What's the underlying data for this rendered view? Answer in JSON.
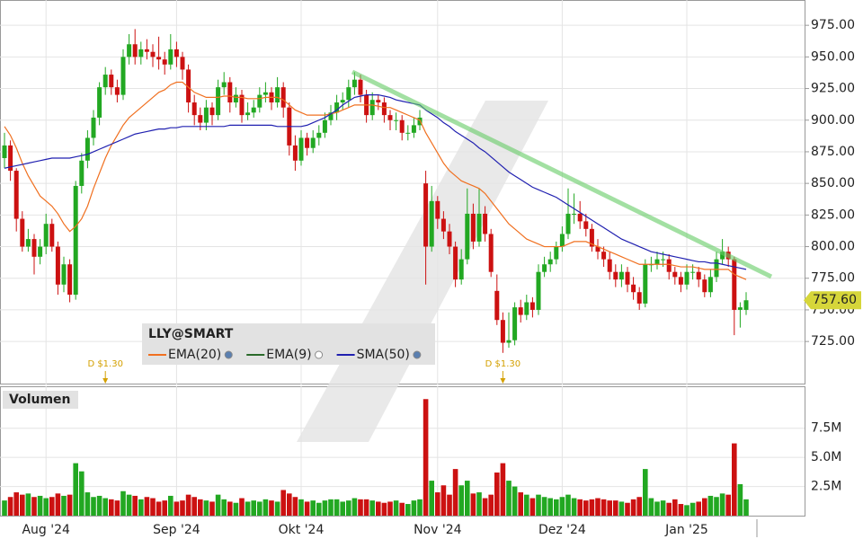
{
  "chart_data": {
    "type": "candlestick",
    "symbol": "LLY@SMART",
    "volume_title": "Volumen",
    "colors": {
      "up": "#22a822",
      "down": "#cc1111"
    },
    "categories": [
      null,
      null,
      null,
      null,
      null,
      null,
      null,
      "Aug '24",
      null,
      null,
      null,
      null,
      null,
      null,
      null,
      null,
      null,
      null,
      null,
      null,
      null,
      null,
      null,
      null,
      null,
      null,
      null,
      null,
      null,
      "Sep '24",
      null,
      null,
      null,
      null,
      null,
      null,
      null,
      null,
      null,
      null,
      null,
      null,
      null,
      null,
      null,
      null,
      null,
      null,
      null,
      null,
      "Okt '24",
      null,
      null,
      null,
      null,
      null,
      null,
      null,
      null,
      null,
      null,
      null,
      null,
      null,
      null,
      null,
      null,
      null,
      null,
      null,
      null,
      null,
      null,
      "Nov '24",
      null,
      null,
      null,
      null,
      null,
      null,
      null,
      null,
      null,
      null,
      null,
      null,
      null,
      null,
      null,
      null,
      null,
      null,
      null,
      null,
      "Dez '24",
      null,
      null,
      null,
      null,
      null,
      null,
      null,
      null,
      null,
      null,
      null,
      null,
      null,
      null,
      null,
      null,
      null,
      null,
      null,
      null,
      "Jan '25",
      null,
      null,
      null,
      null,
      null,
      null,
      null,
      null,
      null,
      null
    ],
    "ohlc": [
      [
        870,
        890,
        862,
        880
      ],
      [
        880,
        884,
        852,
        860
      ],
      [
        860,
        862,
        812,
        822
      ],
      [
        822,
        828,
        796,
        800
      ],
      [
        800,
        814,
        796,
        806
      ],
      [
        806,
        810,
        778,
        792
      ],
      [
        792,
        806,
        786,
        800
      ],
      [
        800,
        826,
        794,
        818
      ],
      [
        818,
        822,
        796,
        800
      ],
      [
        800,
        804,
        762,
        770
      ],
      [
        770,
        792,
        764,
        786
      ],
      [
        786,
        790,
        756,
        762
      ],
      [
        762,
        852,
        758,
        848
      ],
      [
        848,
        874,
        842,
        868
      ],
      [
        868,
        892,
        862,
        886
      ],
      [
        886,
        908,
        880,
        902
      ],
      [
        902,
        930,
        896,
        926
      ],
      [
        926,
        942,
        920,
        936
      ],
      [
        936,
        940,
        920,
        926
      ],
      [
        926,
        932,
        914,
        920
      ],
      [
        920,
        956,
        916,
        950
      ],
      [
        950,
        968,
        944,
        960
      ],
      [
        960,
        972,
        944,
        950
      ],
      [
        950,
        962,
        944,
        956
      ],
      [
        956,
        964,
        948,
        954
      ],
      [
        954,
        960,
        942,
        950
      ],
      [
        950,
        966,
        940,
        948
      ],
      [
        948,
        954,
        936,
        944
      ],
      [
        944,
        968,
        940,
        956
      ],
      [
        956,
        962,
        942,
        950
      ],
      [
        950,
        954,
        932,
        940
      ],
      [
        940,
        944,
        906,
        914
      ],
      [
        914,
        920,
        896,
        904
      ],
      [
        904,
        910,
        892,
        898
      ],
      [
        898,
        916,
        892,
        910
      ],
      [
        910,
        914,
        896,
        904
      ],
      [
        904,
        932,
        900,
        926
      ],
      [
        926,
        938,
        920,
        930
      ],
      [
        930,
        934,
        906,
        914
      ],
      [
        914,
        926,
        910,
        920
      ],
      [
        920,
        924,
        898,
        904
      ],
      [
        904,
        914,
        900,
        906
      ],
      [
        906,
        916,
        902,
        910
      ],
      [
        910,
        926,
        906,
        920
      ],
      [
        920,
        930,
        914,
        922
      ],
      [
        922,
        926,
        908,
        914
      ],
      [
        914,
        934,
        910,
        926
      ],
      [
        926,
        930,
        902,
        910
      ],
      [
        910,
        914,
        872,
        880
      ],
      [
        880,
        888,
        860,
        868
      ],
      [
        868,
        892,
        864,
        886
      ],
      [
        886,
        890,
        872,
        878
      ],
      [
        878,
        892,
        874,
        886
      ],
      [
        886,
        896,
        880,
        890
      ],
      [
        890,
        906,
        886,
        900
      ],
      [
        900,
        912,
        896,
        906
      ],
      [
        906,
        920,
        900,
        914
      ],
      [
        914,
        922,
        908,
        916
      ],
      [
        916,
        932,
        910,
        926
      ],
      [
        926,
        938,
        920,
        932
      ],
      [
        932,
        936,
        914,
        920
      ],
      [
        920,
        924,
        898,
        904
      ],
      [
        904,
        922,
        900,
        916
      ],
      [
        916,
        920,
        908,
        914
      ],
      [
        914,
        918,
        898,
        904
      ],
      [
        904,
        908,
        892,
        900
      ],
      [
        900,
        906,
        892,
        900
      ],
      [
        900,
        904,
        884,
        890
      ],
      [
        890,
        896,
        884,
        890
      ],
      [
        890,
        902,
        886,
        896
      ],
      [
        896,
        908,
        892,
        902
      ],
      [
        850,
        860,
        770,
        800
      ],
      [
        800,
        848,
        796,
        836
      ],
      [
        836,
        840,
        814,
        822
      ],
      [
        822,
        828,
        806,
        812
      ],
      [
        812,
        818,
        794,
        800
      ],
      [
        800,
        804,
        768,
        774
      ],
      [
        774,
        798,
        770,
        790
      ],
      [
        790,
        846,
        786,
        826
      ],
      [
        826,
        834,
        798,
        804
      ],
      [
        804,
        846,
        800,
        826
      ],
      [
        826,
        832,
        804,
        810
      ],
      [
        810,
        814,
        776,
        780
      ],
      [
        765,
        778,
        738,
        742
      ],
      [
        742,
        748,
        716,
        724
      ],
      [
        724,
        748,
        720,
        726
      ],
      [
        726,
        756,
        722,
        752
      ],
      [
        752,
        758,
        740,
        746
      ],
      [
        746,
        762,
        742,
        756
      ],
      [
        756,
        760,
        744,
        750
      ],
      [
        750,
        786,
        746,
        780
      ],
      [
        780,
        792,
        776,
        786
      ],
      [
        786,
        796,
        780,
        790
      ],
      [
        790,
        804,
        786,
        800
      ],
      [
        800,
        816,
        796,
        810
      ],
      [
        810,
        846,
        806,
        826
      ],
      [
        826,
        842,
        818,
        826
      ],
      [
        826,
        836,
        814,
        820
      ],
      [
        820,
        826,
        808,
        814
      ],
      [
        814,
        818,
        796,
        800
      ],
      [
        800,
        806,
        790,
        796
      ],
      [
        796,
        800,
        784,
        790
      ],
      [
        790,
        796,
        774,
        780
      ],
      [
        780,
        786,
        768,
        774
      ],
      [
        774,
        786,
        768,
        780
      ],
      [
        780,
        784,
        764,
        770
      ],
      [
        770,
        776,
        758,
        764
      ],
      [
        764,
        768,
        750,
        755
      ],
      [
        755,
        790,
        752,
        786
      ],
      [
        786,
        792,
        780,
        786
      ],
      [
        786,
        796,
        782,
        790
      ],
      [
        790,
        796,
        784,
        790
      ],
      [
        790,
        794,
        774,
        780
      ],
      [
        780,
        784,
        770,
        776
      ],
      [
        776,
        780,
        764,
        770
      ],
      [
        770,
        786,
        766,
        780
      ],
      [
        780,
        786,
        774,
        780
      ],
      [
        780,
        784,
        768,
        774
      ],
      [
        774,
        778,
        760,
        764
      ],
      [
        764,
        782,
        760,
        776
      ],
      [
        776,
        796,
        772,
        790
      ],
      [
        790,
        806,
        786,
        796
      ],
      [
        796,
        800,
        784,
        790
      ],
      [
        790,
        792,
        730,
        750
      ],
      [
        750,
        756,
        736,
        752
      ],
      [
        750,
        764,
        746,
        757.6
      ]
    ],
    "volume": [
      1.3,
      1.6,
      2.0,
      1.8,
      1.9,
      1.6,
      1.7,
      1.5,
      1.6,
      1.9,
      1.7,
      1.8,
      4.5,
      3.8,
      2.0,
      1.6,
      1.7,
      1.5,
      1.4,
      1.3,
      2.1,
      1.8,
      1.7,
      1.4,
      1.6,
      1.5,
      1.2,
      1.3,
      1.7,
      1.2,
      1.3,
      1.8,
      1.6,
      1.4,
      1.3,
      1.2,
      1.8,
      1.4,
      1.2,
      1.1,
      1.5,
      1.2,
      1.3,
      1.2,
      1.4,
      1.3,
      1.2,
      2.2,
      1.9,
      1.6,
      1.4,
      1.2,
      1.3,
      1.1,
      1.3,
      1.4,
      1.4,
      1.2,
      1.3,
      1.5,
      1.4,
      1.4,
      1.3,
      1.2,
      1.1,
      1.2,
      1.3,
      1.1,
      1.0,
      1.3,
      1.4,
      10.0,
      3.0,
      2.0,
      2.6,
      1.8,
      4.0,
      2.6,
      3.0,
      1.9,
      2.0,
      1.5,
      1.8,
      3.7,
      4.5,
      3.0,
      2.5,
      2.0,
      1.8,
      1.5,
      1.8,
      1.6,
      1.5,
      1.4,
      1.6,
      1.8,
      1.5,
      1.4,
      1.3,
      1.4,
      1.5,
      1.4,
      1.3,
      1.3,
      1.2,
      1.1,
      1.4,
      1.6,
      4.0,
      1.5,
      1.2,
      1.3,
      1.1,
      1.4,
      1.0,
      0.9,
      1.1,
      1.2,
      1.5,
      1.7,
      1.6,
      1.9,
      1.8,
      6.2,
      2.7,
      1.4
    ],
    "indicators": [
      {
        "name": "EMA(20)",
        "color": "#f07020",
        "values": [
          895,
          888,
          878,
          866,
          856,
          848,
          840,
          836,
          832,
          826,
          818,
          812,
          816,
          822,
          832,
          846,
          858,
          870,
          880,
          888,
          896,
          902,
          906,
          910,
          914,
          918,
          922,
          924,
          928,
          930,
          930,
          926,
          922,
          920,
          918,
          918,
          918,
          919,
          919,
          918,
          918,
          917,
          917,
          917,
          918,
          918,
          918,
          916,
          912,
          908,
          906,
          904,
          904,
          904,
          904,
          905,
          906,
          908,
          910,
          912,
          912,
          912,
          912,
          911,
          910,
          910,
          908,
          906,
          904,
          902,
          900,
          890,
          882,
          874,
          866,
          860,
          856,
          852,
          850,
          848,
          846,
          842,
          836,
          830,
          824,
          818,
          814,
          810,
          806,
          804,
          802,
          800,
          800,
          800,
          800,
          802,
          804,
          804,
          804,
          802,
          800,
          798,
          796,
          794,
          792,
          790,
          788,
          786,
          786,
          786,
          786,
          786,
          786,
          785,
          784,
          784,
          784,
          783,
          782,
          782,
          782,
          782,
          782,
          778,
          776,
          774
        ]
      },
      {
        "name": "EMA(9)",
        "color": "#2a6a2a",
        "visible": false
      },
      {
        "name": "SMA(50)",
        "color": "#2020b0",
        "values": [
          862,
          863,
          864,
          865,
          866,
          867,
          868,
          869,
          870,
          870,
          870,
          870,
          871,
          872,
          873,
          875,
          877,
          879,
          881,
          883,
          885,
          887,
          889,
          890,
          891,
          892,
          893,
          893,
          894,
          894,
          895,
          895,
          895,
          895,
          895,
          895,
          895,
          895,
          896,
          896,
          896,
          896,
          896,
          896,
          896,
          896,
          895,
          895,
          895,
          895,
          895,
          896,
          898,
          900,
          902,
          905,
          908,
          912,
          915,
          918,
          919,
          920,
          920,
          920,
          919,
          918,
          916,
          915,
          914,
          913,
          912,
          908,
          905,
          902,
          898,
          895,
          891,
          888,
          885,
          882,
          878,
          875,
          871,
          867,
          863,
          859,
          856,
          853,
          850,
          847,
          845,
          843,
          841,
          839,
          836,
          833,
          830,
          827,
          824,
          821,
          818,
          815,
          812,
          809,
          806,
          804,
          802,
          800,
          798,
          796,
          795,
          794,
          793,
          792,
          791,
          790,
          789,
          788,
          788,
          787,
          787,
          786,
          785,
          784,
          783,
          782
        ]
      }
    ],
    "dividends": [
      {
        "index": 17,
        "label": "D $1.30"
      },
      {
        "index": 84,
        "label": "D $1.30"
      }
    ],
    "last_price": {
      "value": 757.6,
      "label": "757.60"
    },
    "ylim": [
      691,
      995
    ],
    "yticks": [
      {
        "value": 725,
        "label": "725.00"
      },
      {
        "value": 750,
        "label": "750.00"
      },
      {
        "value": 775,
        "label": "775.00"
      },
      {
        "value": 800,
        "label": "800.00"
      },
      {
        "value": 825,
        "label": "825.00"
      },
      {
        "value": 850,
        "label": "850.00"
      },
      {
        "value": 875,
        "label": "875.00"
      },
      {
        "value": 900,
        "label": "900.00"
      },
      {
        "value": 925,
        "label": "925.00"
      },
      {
        "value": 950,
        "label": "950.00"
      },
      {
        "value": 975,
        "label": "975.00"
      }
    ],
    "volume_lim": [
      0,
      11.1
    ],
    "volume_ticks": [
      {
        "value": 2.5,
        "label": "2.5M"
      },
      {
        "value": 5,
        "label": "5.0M"
      },
      {
        "value": 7.5,
        "label": "7.5M"
      }
    ],
    "grid": true
  }
}
